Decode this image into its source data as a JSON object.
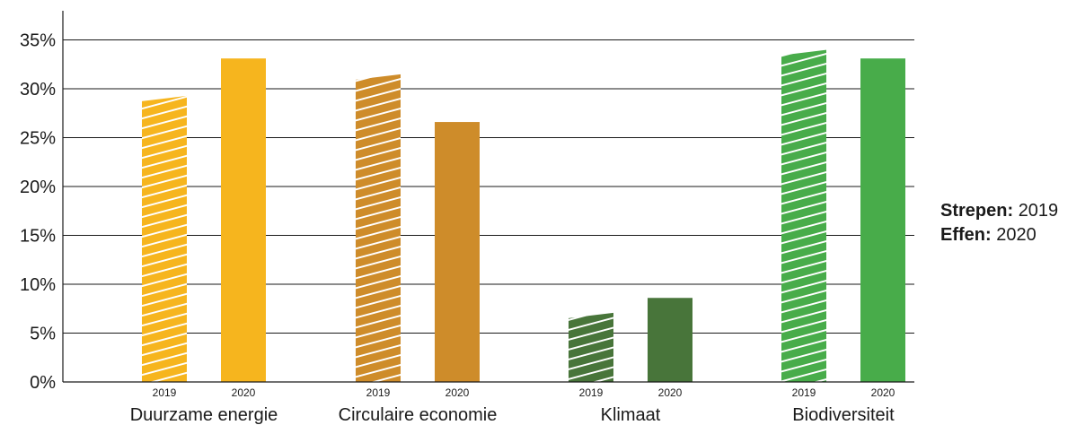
{
  "chart_data": {
    "type": "bar",
    "categories": [
      "Duurzame energie",
      "Circulaire economie",
      "Klimaat",
      "Biodiversiteit"
    ],
    "series": [
      {
        "name": "2019",
        "values": [
          29,
          31.2,
          6.8,
          33.7
        ]
      },
      {
        "name": "2020",
        "values": [
          33.1,
          26.6,
          8.6,
          33.1
        ]
      }
    ],
    "series_tick_labels": [
      "2019",
      "2020"
    ],
    "category_colors": [
      "#F6B51E",
      "#CE8C2A",
      "#48753A",
      "#48AC4A"
    ],
    "y_ticks": [
      "0%",
      "5%",
      "10%",
      "15%",
      "20%",
      "25%",
      "30%",
      "35%"
    ],
    "ylim": [
      0,
      35
    ],
    "grid": true,
    "title": "",
    "xlabel": "",
    "ylabel": ""
  },
  "legend": {
    "striped_label": "Strepen:",
    "striped_value": "2019",
    "solid_label": "Effen:",
    "solid_value": "2020"
  }
}
